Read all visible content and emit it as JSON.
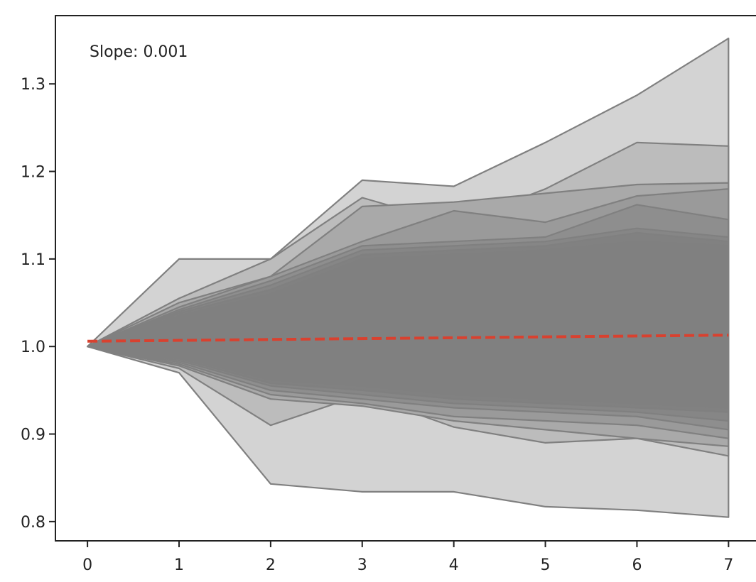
{
  "chart_data": {
    "type": "area",
    "title": "",
    "xlabel": "",
    "ylabel": "",
    "x": [
      0,
      1,
      2,
      3,
      4,
      5,
      6,
      7
    ],
    "xlim": [
      -0.35,
      7.3
    ],
    "ylim": [
      0.778,
      1.378
    ],
    "xticks": [
      "0",
      "1",
      "2",
      "3",
      "4",
      "5",
      "6",
      "7"
    ],
    "yticks": [
      "0.8",
      "0.9",
      "1.0",
      "1.1",
      "1.2",
      "1.3"
    ],
    "grid": false,
    "annotation": "Slope: 0.001",
    "trend": {
      "slope": 0.001,
      "intercept": 1.006,
      "color": "#d9412f",
      "style": "dashed"
    },
    "fill_color": "#808080",
    "band_colors": [
      "#d3d3d3",
      "#bcbcbc",
      "#a9a9a9",
      "#9a9a9a",
      "#8e8e8e",
      "#868686",
      "#818181",
      "#808080"
    ],
    "edge_color": "#808080",
    "series": [
      {
        "upper": [
          1.0,
          1.1,
          1.1,
          1.19,
          1.183,
          1.233,
          1.287,
          1.352
        ],
        "lower": [
          1.0,
          0.97,
          0.843,
          0.834,
          0.834,
          0.817,
          0.813,
          0.805
        ]
      },
      {
        "upper": [
          1.0,
          1.055,
          1.1,
          1.17,
          1.14,
          1.18,
          1.233,
          1.229
        ],
        "lower": [
          1.0,
          0.975,
          0.91,
          0.945,
          0.908,
          0.89,
          0.895,
          0.875
        ]
      },
      {
        "upper": [
          1.0,
          1.05,
          1.08,
          1.16,
          1.165,
          1.175,
          1.185,
          1.187
        ],
        "lower": [
          1.0,
          0.978,
          0.94,
          0.932,
          0.915,
          0.905,
          0.895,
          0.886
        ]
      },
      {
        "upper": [
          1.0,
          1.045,
          1.08,
          1.12,
          1.155,
          1.142,
          1.172,
          1.18
        ],
        "lower": [
          1.0,
          0.98,
          0.945,
          0.935,
          0.92,
          0.915,
          0.91,
          0.895
        ]
      },
      {
        "upper": [
          1.0,
          1.042,
          1.075,
          1.115,
          1.12,
          1.125,
          1.162,
          1.145
        ],
        "lower": [
          1.0,
          0.982,
          0.95,
          0.94,
          0.93,
          0.925,
          0.92,
          0.905
        ]
      },
      {
        "upper": [
          1.0,
          1.04,
          1.07,
          1.11,
          1.115,
          1.12,
          1.135,
          1.125
        ],
        "lower": [
          1.0,
          0.984,
          0.955,
          0.945,
          0.935,
          0.93,
          0.925,
          0.915
        ]
      },
      {
        "upper": [
          1.0,
          1.038,
          1.065,
          1.105,
          1.11,
          1.115,
          1.13,
          1.12
        ],
        "lower": [
          1.0,
          0.986,
          0.958,
          0.95,
          0.94,
          0.935,
          0.93,
          0.925
        ]
      },
      {
        "upper": [
          1.0,
          1.035,
          1.06,
          1.1,
          1.105,
          1.11,
          1.12,
          1.115
        ],
        "lower": [
          1.0,
          0.988,
          0.962,
          0.955,
          0.945,
          0.94,
          0.935,
          0.93
        ]
      }
    ]
  }
}
